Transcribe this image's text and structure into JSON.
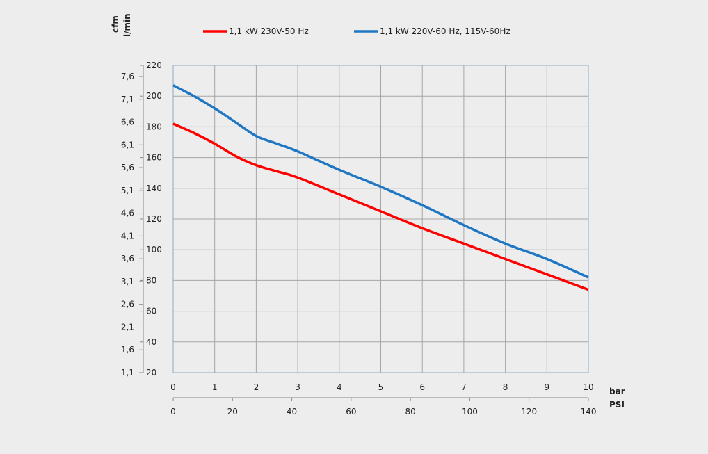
{
  "chart_data": {
    "type": "line",
    "legend_placement": "top",
    "grid": true,
    "units": {
      "cfm": "cfm",
      "lmin": "l/min",
      "bar": "bar",
      "psi": "PSI"
    },
    "x_bar": {
      "ticks": [
        "0",
        "1",
        "2",
        "3",
        "4",
        "5",
        "6",
        "7",
        "8",
        "9",
        "10"
      ],
      "range": [
        0,
        10
      ]
    },
    "x_psi": {
      "ticks": [
        "0",
        "20",
        "40",
        "60",
        "80",
        "100",
        "120",
        "140"
      ],
      "range": [
        0,
        140
      ]
    },
    "y_lmin": {
      "ticks": [
        "20",
        "40",
        "60",
        "80",
        "100",
        "120",
        "140",
        "160",
        "180",
        "200",
        "220"
      ],
      "range": [
        20,
        220
      ]
    },
    "y_cfm": {
      "ticks": [
        "1,1",
        "1,6",
        "2,1",
        "2,6",
        "3,1",
        "3,6",
        "4,1",
        "4,6",
        "5,1",
        "5,6",
        "6,1",
        "6,6",
        "7,1",
        "7,6"
      ],
      "values": [
        1.1,
        1.6,
        2.1,
        2.6,
        3.1,
        3.6,
        4.1,
        4.6,
        5.1,
        5.6,
        6.1,
        6.6,
        7.1,
        7.6
      ]
    },
    "series": [
      {
        "name": "1,1 kW 230V-50 Hz",
        "color": "#ff0000",
        "x": [
          0,
          0.5,
          1,
          1.5,
          2,
          2.5,
          3,
          4,
          5,
          6,
          7,
          8,
          9,
          10
        ],
        "y": [
          182,
          176,
          169,
          161,
          155,
          151,
          147,
          136,
          125,
          114,
          104,
          94,
          84,
          74
        ]
      },
      {
        "name": "1,1 kW 220V-60 Hz, 115V-60Hz",
        "color": "#1f77c4",
        "x": [
          0,
          0.5,
          1,
          1.5,
          2,
          2.5,
          3,
          4,
          5,
          6,
          7,
          8,
          9,
          10
        ],
        "y": [
          207,
          200,
          192,
          183,
          174,
          169,
          164,
          152,
          141,
          129,
          116,
          104,
          94,
          82
        ]
      }
    ]
  }
}
